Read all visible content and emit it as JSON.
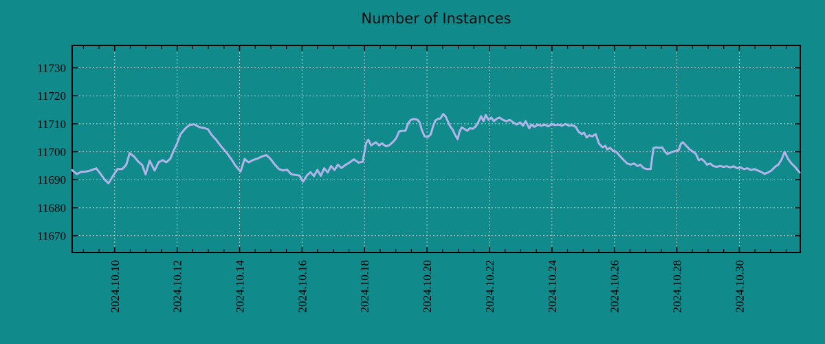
{
  "page": {
    "background_color": "#118a8c",
    "text_color": "#000000"
  },
  "chart_data": {
    "type": "line",
    "title": "Number of Instances",
    "legend": "none",
    "grid": {
      "style": "dotted",
      "color": "#c9c9c9"
    },
    "border_color": "#000000",
    "x_axis": {
      "unit": "date",
      "x_unit_note": "day of October 2024, fractional",
      "range_days": [
        8.64,
        31.95
      ],
      "tick_values": [
        10,
        12,
        14,
        16,
        18,
        20,
        22,
        24,
        26,
        28,
        30
      ],
      "tick_labels": [
        "2024.10.10",
        "2024.10.12",
        "2024.10.14",
        "2024.10.16",
        "2024.10.18",
        "2024.10.20",
        "2024.10.22",
        "2024.10.24",
        "2024.10.26",
        "2024.10.28",
        "2024.10.30"
      ],
      "minor_tick_step": 0.5,
      "label_rotation_deg": -90
    },
    "y_axis": {
      "range": [
        11664,
        11738
      ],
      "tick_values": [
        11670,
        11680,
        11690,
        11700,
        11710,
        11720,
        11730
      ],
      "tick_labels": [
        "11670",
        "11680",
        "11690",
        "11700",
        "11710",
        "11720",
        "11730"
      ]
    },
    "series": [
      {
        "name": "Number of Instances",
        "color": "#b1b4e9",
        "line_width": 3,
        "points": [
          [
            8.64,
            11693.4
          ],
          [
            8.79,
            11692.0
          ],
          [
            8.92,
            11692.8
          ],
          [
            9.08,
            11692.9
          ],
          [
            9.23,
            11693.3
          ],
          [
            9.41,
            11694.1
          ],
          [
            9.54,
            11692.2
          ],
          [
            9.67,
            11690.2
          ],
          [
            9.8,
            11688.7
          ],
          [
            9.96,
            11691.6
          ],
          [
            10.09,
            11693.8
          ],
          [
            10.24,
            11693.8
          ],
          [
            10.37,
            11695.3
          ],
          [
            10.48,
            11699.5
          ],
          [
            10.62,
            11698.3
          ],
          [
            10.75,
            11696.5
          ],
          [
            10.88,
            11695.3
          ],
          [
            10.99,
            11691.9
          ],
          [
            11.12,
            11696.8
          ],
          [
            11.28,
            11693.3
          ],
          [
            11.41,
            11696.3
          ],
          [
            11.54,
            11697.0
          ],
          [
            11.65,
            11696.2
          ],
          [
            11.78,
            11697.5
          ],
          [
            11.89,
            11700.4
          ],
          [
            12.0,
            11703.0
          ],
          [
            12.11,
            11706.3
          ],
          [
            12.27,
            11708.4
          ],
          [
            12.4,
            11709.6
          ],
          [
            12.55,
            11709.8
          ],
          [
            12.71,
            11708.8
          ],
          [
            12.86,
            11708.5
          ],
          [
            12.99,
            11708.0
          ],
          [
            13.1,
            11706.1
          ],
          [
            13.26,
            11704.1
          ],
          [
            13.41,
            11701.9
          ],
          [
            13.59,
            11699.6
          ],
          [
            13.74,
            11697.3
          ],
          [
            13.87,
            11695.0
          ],
          [
            14.03,
            11692.9
          ],
          [
            14.16,
            11697.4
          ],
          [
            14.29,
            11696.2
          ],
          [
            14.42,
            11697.0
          ],
          [
            14.58,
            11697.6
          ],
          [
            14.73,
            11698.4
          ],
          [
            14.86,
            11698.8
          ],
          [
            14.99,
            11697.4
          ],
          [
            15.13,
            11695.4
          ],
          [
            15.26,
            11693.8
          ],
          [
            15.39,
            11693.3
          ],
          [
            15.52,
            11693.6
          ],
          [
            15.65,
            11692.0
          ],
          [
            15.79,
            11691.7
          ],
          [
            15.92,
            11691.5
          ],
          [
            16.03,
            11689.3
          ],
          [
            16.16,
            11691.6
          ],
          [
            16.27,
            11692.7
          ],
          [
            16.38,
            11691.3
          ],
          [
            16.49,
            11693.5
          ],
          [
            16.6,
            11691.4
          ],
          [
            16.71,
            11694.1
          ],
          [
            16.82,
            11692.6
          ],
          [
            16.93,
            11694.9
          ],
          [
            17.04,
            11693.5
          ],
          [
            17.15,
            11695.4
          ],
          [
            17.26,
            11694.2
          ],
          [
            17.39,
            11695.3
          ],
          [
            17.5,
            11696.0
          ],
          [
            17.66,
            11697.3
          ],
          [
            17.81,
            11696.1
          ],
          [
            17.94,
            11696.4
          ],
          [
            18.05,
            11703.0
          ],
          [
            18.12,
            11704.3
          ],
          [
            18.21,
            11702.3
          ],
          [
            18.36,
            11703.4
          ],
          [
            18.47,
            11702.3
          ],
          [
            18.56,
            11703.0
          ],
          [
            18.69,
            11701.9
          ],
          [
            18.8,
            11702.4
          ],
          [
            18.93,
            11703.7
          ],
          [
            19.02,
            11705.0
          ],
          [
            19.11,
            11707.3
          ],
          [
            19.22,
            11707.5
          ],
          [
            19.31,
            11707.5
          ],
          [
            19.39,
            11710.0
          ],
          [
            19.48,
            11711.4
          ],
          [
            19.59,
            11711.7
          ],
          [
            19.7,
            11711.4
          ],
          [
            19.77,
            11710.4
          ],
          [
            19.83,
            11707.9
          ],
          [
            19.92,
            11705.5
          ],
          [
            20.03,
            11705.3
          ],
          [
            20.12,
            11706.2
          ],
          [
            20.21,
            11709.6
          ],
          [
            20.27,
            11711.2
          ],
          [
            20.36,
            11711.8
          ],
          [
            20.43,
            11711.9
          ],
          [
            20.52,
            11713.5
          ],
          [
            20.6,
            11712.5
          ],
          [
            20.67,
            11710.8
          ],
          [
            20.74,
            11709.1
          ],
          [
            20.82,
            11707.9
          ],
          [
            20.89,
            11706.2
          ],
          [
            20.98,
            11704.5
          ],
          [
            21.04,
            11707.1
          ],
          [
            21.11,
            11708.7
          ],
          [
            21.2,
            11708.1
          ],
          [
            21.29,
            11707.5
          ],
          [
            21.37,
            11708.4
          ],
          [
            21.46,
            11708.2
          ],
          [
            21.55,
            11708.9
          ],
          [
            21.64,
            11710.5
          ],
          [
            21.73,
            11712.7
          ],
          [
            21.81,
            11710.9
          ],
          [
            21.88,
            11713.1
          ],
          [
            21.97,
            11711.4
          ],
          [
            22.06,
            11712.2
          ],
          [
            22.14,
            11710.9
          ],
          [
            22.23,
            11711.8
          ],
          [
            22.32,
            11712.2
          ],
          [
            22.43,
            11711.4
          ],
          [
            22.54,
            11710.9
          ],
          [
            22.65,
            11711.4
          ],
          [
            22.76,
            11710.5
          ],
          [
            22.87,
            11709.7
          ],
          [
            22.98,
            11710.5
          ],
          [
            23.07,
            11709.3
          ],
          [
            23.16,
            11710.9
          ],
          [
            23.27,
            11708.4
          ],
          [
            23.35,
            11709.7
          ],
          [
            23.44,
            11708.9
          ],
          [
            23.55,
            11709.7
          ],
          [
            23.66,
            11709.3
          ],
          [
            23.77,
            11709.7
          ],
          [
            23.88,
            11709.1
          ],
          [
            23.99,
            11709.9
          ],
          [
            24.1,
            11709.5
          ],
          [
            24.21,
            11709.7
          ],
          [
            24.32,
            11709.3
          ],
          [
            24.43,
            11709.9
          ],
          [
            24.54,
            11709.3
          ],
          [
            24.65,
            11709.5
          ],
          [
            24.76,
            11708.9
          ],
          [
            24.85,
            11707.2
          ],
          [
            24.96,
            11706.3
          ],
          [
            25.03,
            11706.8
          ],
          [
            25.11,
            11705.1
          ],
          [
            25.2,
            11705.9
          ],
          [
            25.29,
            11705.5
          ],
          [
            25.4,
            11706.3
          ],
          [
            25.51,
            11702.9
          ],
          [
            25.62,
            11701.6
          ],
          [
            25.71,
            11702.1
          ],
          [
            25.77,
            11700.8
          ],
          [
            25.86,
            11701.4
          ],
          [
            25.95,
            11700.4
          ],
          [
            26.06,
            11700.0
          ],
          [
            26.19,
            11698.3
          ],
          [
            26.3,
            11697.0
          ],
          [
            26.41,
            11695.8
          ],
          [
            26.52,
            11695.4
          ],
          [
            26.63,
            11695.8
          ],
          [
            26.74,
            11694.9
          ],
          [
            26.83,
            11695.4
          ],
          [
            26.94,
            11694.1
          ],
          [
            27.05,
            11693.8
          ],
          [
            27.16,
            11693.8
          ],
          [
            27.25,
            11701.3
          ],
          [
            27.34,
            11701.6
          ],
          [
            27.45,
            11701.4
          ],
          [
            27.53,
            11701.6
          ],
          [
            27.62,
            11700.0
          ],
          [
            27.69,
            11699.2
          ],
          [
            27.78,
            11699.6
          ],
          [
            27.86,
            11700.0
          ],
          [
            27.97,
            11700.3
          ],
          [
            28.06,
            11700.6
          ],
          [
            28.13,
            11702.9
          ],
          [
            28.19,
            11703.4
          ],
          [
            28.3,
            11702.1
          ],
          [
            28.41,
            11700.8
          ],
          [
            28.52,
            11700.0
          ],
          [
            28.61,
            11699.2
          ],
          [
            28.7,
            11697.0
          ],
          [
            28.79,
            11697.4
          ],
          [
            28.88,
            11696.6
          ],
          [
            28.96,
            11695.4
          ],
          [
            29.07,
            11695.8
          ],
          [
            29.16,
            11694.9
          ],
          [
            29.27,
            11694.6
          ],
          [
            29.38,
            11694.9
          ],
          [
            29.49,
            11694.6
          ],
          [
            29.6,
            11694.8
          ],
          [
            29.71,
            11694.4
          ],
          [
            29.82,
            11694.8
          ],
          [
            29.93,
            11694.1
          ],
          [
            30.04,
            11694.4
          ],
          [
            30.15,
            11693.8
          ],
          [
            30.26,
            11694.1
          ],
          [
            30.37,
            11693.5
          ],
          [
            30.48,
            11693.8
          ],
          [
            30.59,
            11693.3
          ],
          [
            30.7,
            11692.8
          ],
          [
            30.81,
            11692.1
          ],
          [
            30.92,
            11692.6
          ],
          [
            31.03,
            11693.3
          ],
          [
            31.14,
            11694.6
          ],
          [
            31.25,
            11695.4
          ],
          [
            31.36,
            11697.4
          ],
          [
            31.45,
            11700.0
          ],
          [
            31.56,
            11697.4
          ],
          [
            31.67,
            11695.8
          ],
          [
            31.78,
            11694.6
          ],
          [
            31.93,
            11692.6
          ]
        ]
      }
    ]
  }
}
